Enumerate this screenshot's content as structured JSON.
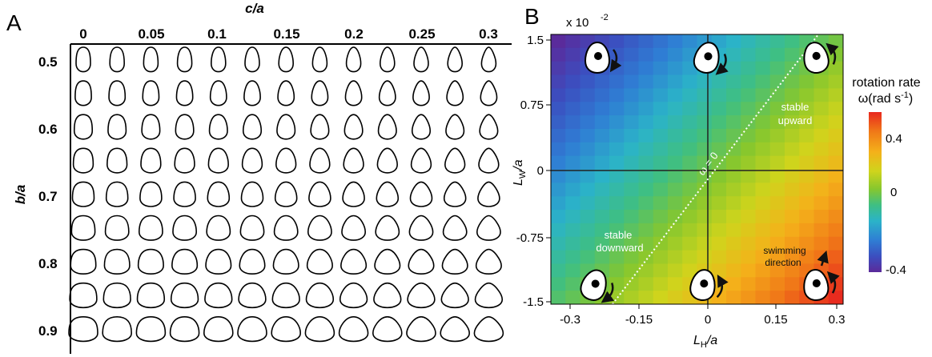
{
  "panel_a": {
    "label": "A",
    "x_axis_label": "c/a",
    "y_axis_label": "b/a",
    "x_ticks": [
      "0",
      "0.05",
      "0.1",
      "0.15",
      "0.2",
      "0.25",
      "0.3"
    ],
    "y_ticks": [
      "0.5",
      "0.6",
      "0.7",
      "0.8",
      "0.9"
    ],
    "grid": {
      "columns": 13,
      "rows": 9
    }
  },
  "panel_b": {
    "label": "B",
    "exponent_label": "x 10",
    "exponent_power": "-2",
    "x_axis_label_main": "L",
    "x_axis_label_sub": "H",
    "x_axis_label_tail": "/a",
    "y_axis_label_main": "L",
    "y_axis_label_sub": "W",
    "y_axis_label_tail": "/a",
    "x_ticks": [
      "-0.3",
      "-0.15",
      "0",
      "0.15",
      "0.3"
    ],
    "y_ticks": [
      "1.5",
      "0.75",
      "0",
      "-0.75",
      "-1.5"
    ],
    "zero_line_label": "ω = 0",
    "annotations": {
      "stable_upward_line1": "stable",
      "stable_upward_line2": "upward",
      "stable_downward_line1": "stable",
      "stable_downward_line2": "downward",
      "swimming_line1": "swimming",
      "swimming_line2": "direction"
    },
    "colorbar": {
      "title_line1": "rotation rate",
      "title_line2_prefix": "ω(rad s",
      "title_line2_sup": "-1",
      "title_line2_suffix": ")",
      "ticks": [
        "0.4",
        "0",
        "-0.4"
      ],
      "colors": [
        "#e8281e",
        "#f07818",
        "#f4b11a",
        "#cfd41c",
        "#86c72e",
        "#3fbf82",
        "#2bb3c8",
        "#2f7ed4",
        "#3b4fc0",
        "#5b2a9a"
      ]
    },
    "heatmap_colors": {
      "low": "#3f3fa8",
      "mid": "#9acd32",
      "high": "#e8341c"
    }
  }
}
